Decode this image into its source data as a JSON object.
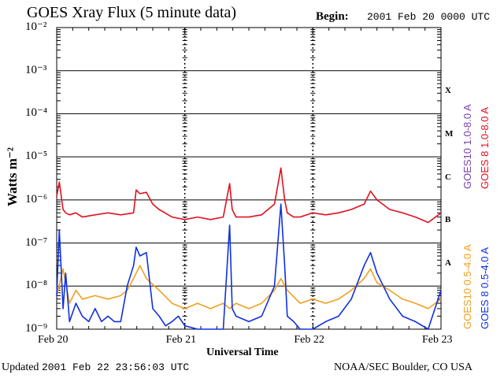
{
  "header": {
    "title": "GOES Xray Flux (5 minute data)",
    "begin_label": "Begin:",
    "begin_value": "2001 Feb 20 0000 UTC"
  },
  "footer": {
    "updated_label": "Updated",
    "updated_value": "2001 Feb 22 23:56:03 UTC",
    "source": "NOAA/SEC Boulder, CO USA"
  },
  "chart_data": {
    "type": "line",
    "title": "GOES Xray Flux (5 minute data)",
    "xlabel": "Universal Time",
    "ylabel": "Watts m⁻²",
    "yscale": "log",
    "ylim": [
      1e-09,
      0.01
    ],
    "y_tick_labels": [
      "10⁻²",
      "10⁻³",
      "10⁻⁴",
      "10⁻⁵",
      "10⁻⁶",
      "10⁻⁷",
      "10⁻⁸",
      "10⁻⁹"
    ],
    "x_tick_labels": [
      "Feb 20",
      "Feb 21",
      "Feb 22",
      "Feb 23"
    ],
    "xlim_days": [
      0,
      3
    ],
    "flare_classes": [
      "X",
      "M",
      "C",
      "B",
      "A"
    ],
    "grid": true,
    "legend_placement": "right, vertical",
    "legend": [
      {
        "name": "GOES10 1.0-8.0 A",
        "color": "#7a3fb0"
      },
      {
        "name": "GOES 8 1.0-8.0 A",
        "color": "#e01020"
      },
      {
        "name": "GOES10 0.5-4.0 A",
        "color": "#f0a020"
      },
      {
        "name": "GOES 8 0.5-4.0 A",
        "color": "#1030e0"
      }
    ],
    "series": [
      {
        "name": "GOES 8 1.0-8.0 A",
        "color": "#e01020",
        "x_days": [
          0,
          0.02,
          0.05,
          0.07,
          0.1,
          0.15,
          0.2,
          0.3,
          0.4,
          0.5,
          0.6,
          0.62,
          0.65,
          0.7,
          0.75,
          0.8,
          0.9,
          1.0,
          1.1,
          1.2,
          1.3,
          1.35,
          1.37,
          1.4,
          1.5,
          1.6,
          1.7,
          1.75,
          1.78,
          1.8,
          1.85,
          1.9,
          2.0,
          2.1,
          2.2,
          2.3,
          2.4,
          2.45,
          2.5,
          2.6,
          2.7,
          2.8,
          2.9,
          3.0
        ],
        "y": [
          1.2e-06,
          2.6e-06,
          6e-07,
          5e-07,
          4.5e-07,
          5e-07,
          4e-07,
          4.5e-07,
          5e-07,
          4.5e-07,
          5e-07,
          1.7e-06,
          1.4e-06,
          1.5e-06,
          8e-07,
          6e-07,
          4e-07,
          3.5e-07,
          4e-07,
          3.5e-07,
          4e-07,
          2.4e-06,
          6e-07,
          4e-07,
          4e-07,
          4.5e-07,
          8e-07,
          5.5e-06,
          1e-06,
          5e-07,
          4e-07,
          4e-07,
          5e-07,
          4.5e-07,
          5e-07,
          6e-07,
          8e-07,
          1.6e-06,
          1e-06,
          6e-07,
          5e-07,
          4e-07,
          3e-07,
          5e-07
        ]
      },
      {
        "name": "GOES10 0.5-4.0 A",
        "color": "#f0a020",
        "x_days": [
          0,
          0.05,
          0.1,
          0.15,
          0.2,
          0.3,
          0.4,
          0.5,
          0.55,
          0.6,
          0.65,
          0.7,
          0.8,
          0.9,
          1.0,
          1.1,
          1.2,
          1.3,
          1.35,
          1.4,
          1.5,
          1.6,
          1.7,
          1.75,
          1.8,
          1.9,
          2.0,
          2.1,
          2.2,
          2.3,
          2.4,
          2.45,
          2.5,
          2.6,
          2.7,
          2.8,
          2.9,
          3.0
        ],
        "y": [
          6e-09,
          2.5e-08,
          4e-09,
          8e-09,
          5e-09,
          6e-09,
          5e-09,
          6e-09,
          8e-09,
          1.5e-08,
          3e-08,
          1.5e-08,
          8e-09,
          4e-09,
          3e-09,
          4e-09,
          3e-09,
          4e-09,
          3e-09,
          4e-09,
          3e-09,
          4e-09,
          8e-09,
          1.5e-08,
          8e-09,
          4e-09,
          5e-09,
          4e-09,
          5e-09,
          8e-09,
          1.5e-08,
          2.5e-08,
          1.2e-08,
          8e-09,
          5e-09,
          4e-09,
          3e-09,
          5e-09
        ]
      },
      {
        "name": "GOES 8 0.5-4.0 A",
        "color": "#1030e0",
        "x_days": [
          0,
          0.02,
          0.05,
          0.07,
          0.1,
          0.15,
          0.2,
          0.25,
          0.3,
          0.35,
          0.4,
          0.45,
          0.5,
          0.55,
          0.6,
          0.62,
          0.65,
          0.7,
          0.75,
          0.8,
          0.85,
          0.9,
          0.95,
          1.0,
          1.1,
          1.2,
          1.3,
          1.35,
          1.37,
          1.4,
          1.5,
          1.6,
          1.7,
          1.75,
          1.78,
          1.8,
          1.85,
          1.9,
          2.0,
          2.1,
          2.2,
          2.3,
          2.4,
          2.45,
          2.5,
          2.6,
          2.7,
          2.8,
          2.9,
          3.0
        ],
        "y": [
          6e-09,
          2e-07,
          3e-09,
          2e-08,
          1.5e-09,
          4e-09,
          2e-09,
          1.5e-09,
          3e-09,
          1.5e-09,
          2e-09,
          1.5e-09,
          1.5e-09,
          1e-08,
          3e-08,
          8e-08,
          5e-08,
          6e-08,
          3e-09,
          2e-09,
          1.2e-09,
          1.5e-09,
          2e-09,
          1.2e-09,
          1e-09,
          1e-09,
          1e-09,
          2.6e-07,
          3e-09,
          2e-09,
          1.5e-09,
          2e-09,
          1e-08,
          8e-07,
          3e-08,
          2e-09,
          1.5e-09,
          1e-09,
          1e-09,
          1.5e-09,
          2e-09,
          5e-09,
          3e-08,
          6e-08,
          2e-08,
          5e-09,
          2e-09,
          1.5e-09,
          1e-09,
          8e-09
        ]
      }
    ]
  }
}
